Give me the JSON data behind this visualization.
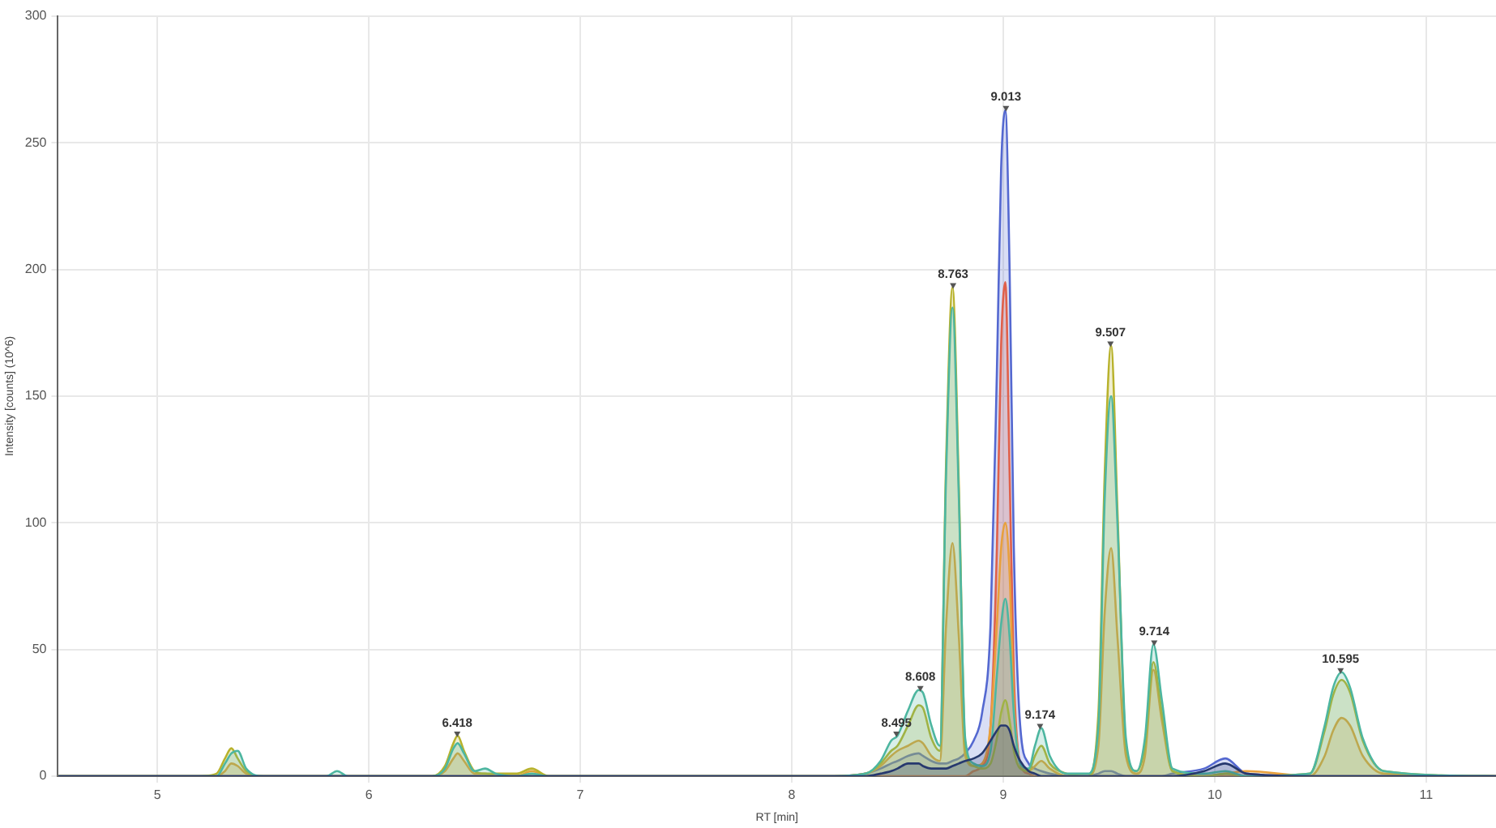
{
  "chart_data": {
    "type": "area",
    "xlabel": "RT [min]",
    "ylabel": "Intensity [counts] (10^6)",
    "x": [
      4.53,
      5.2,
      5.28,
      5.32,
      5.35,
      5.38,
      5.42,
      5.5,
      5.8,
      5.85,
      5.9,
      6.3,
      6.36,
      6.4,
      6.42,
      6.45,
      6.5,
      6.55,
      6.6,
      6.7,
      6.77,
      6.85,
      8.2,
      8.35,
      8.42,
      8.47,
      8.5,
      8.55,
      8.6,
      8.62,
      8.66,
      8.7,
      8.73,
      8.76,
      8.79,
      8.82,
      8.86,
      8.9,
      8.94,
      8.97,
      8.99,
      9.01,
      9.03,
      9.05,
      9.08,
      9.12,
      9.15,
      9.18,
      9.22,
      9.3,
      9.4,
      9.45,
      9.48,
      9.51,
      9.54,
      9.58,
      9.63,
      9.67,
      9.71,
      9.75,
      9.8,
      9.95,
      10.05,
      10.15,
      10.45,
      10.52,
      10.56,
      10.6,
      10.64,
      10.7,
      10.8,
      11.33
    ],
    "series": [
      {
        "color": "#26386e",
        "values": [
          0,
          0,
          0,
          0,
          0,
          0,
          0,
          0,
          0,
          0,
          0,
          0,
          0,
          0,
          0,
          0,
          0,
          0,
          0,
          0,
          0,
          0,
          0,
          0,
          1,
          2,
          3,
          5,
          5,
          4,
          3,
          3,
          3,
          4,
          5,
          6,
          7,
          9,
          14,
          18,
          20,
          20,
          18,
          12,
          6,
          2,
          1,
          0,
          0,
          0,
          0,
          0,
          0,
          0,
          0,
          0,
          0,
          0,
          0,
          0,
          0,
          2,
          5,
          1,
          0,
          0,
          0,
          0,
          0,
          0,
          0,
          0
        ]
      },
      {
        "color": "#4db6a0",
        "values": [
          0,
          0,
          0,
          5,
          9,
          10,
          3,
          0,
          0,
          2,
          0,
          0,
          3,
          11,
          13,
          9,
          2,
          3,
          1,
          0,
          1,
          0,
          0,
          1,
          6,
          14,
          16,
          26,
          34,
          33,
          20,
          12,
          120,
          185,
          110,
          15,
          5,
          4,
          10,
          40,
          60,
          70,
          55,
          25,
          5,
          3,
          12,
          19,
          8,
          1,
          1,
          20,
          110,
          150,
          100,
          15,
          2,
          15,
          52,
          30,
          3,
          1,
          2,
          0,
          1,
          20,
          35,
          41,
          35,
          15,
          2,
          0
        ]
      },
      {
        "color": "#b8b22c",
        "values": [
          0,
          0,
          1,
          7,
          11,
          7,
          2,
          0,
          0,
          0,
          0,
          0,
          4,
          13,
          16,
          10,
          2,
          1,
          1,
          1,
          3,
          0,
          0,
          1,
          5,
          10,
          12,
          20,
          28,
          27,
          15,
          10,
          125,
          193,
          115,
          12,
          4,
          3,
          5,
          15,
          25,
          30,
          22,
          10,
          3,
          2,
          8,
          12,
          5,
          1,
          0,
          25,
          120,
          170,
          105,
          12,
          2,
          12,
          45,
          25,
          2,
          0,
          1,
          0,
          1,
          18,
          32,
          38,
          33,
          14,
          2,
          0
        ]
      },
      {
        "color": "#e8a03c",
        "values": [
          0,
          0,
          0,
          2,
          5,
          4,
          1,
          0,
          0,
          0,
          0,
          0,
          2,
          7,
          9,
          6,
          1,
          1,
          0,
          0,
          2,
          0,
          0,
          1,
          4,
          8,
          10,
          12,
          14,
          13,
          8,
          6,
          60,
          92,
          55,
          8,
          4,
          5,
          20,
          60,
          90,
          100,
          80,
          30,
          5,
          2,
          4,
          6,
          3,
          0,
          0,
          12,
          65,
          90,
          55,
          8,
          1,
          8,
          42,
          22,
          2,
          0,
          1,
          2,
          0,
          8,
          18,
          23,
          20,
          8,
          1,
          0
        ]
      },
      {
        "color": "#e0604a",
        "values": [
          0,
          0,
          0,
          0,
          0,
          0,
          0,
          0,
          0,
          0,
          0,
          0,
          0,
          0,
          0,
          0,
          0,
          0,
          0,
          0,
          0,
          0,
          0,
          0,
          0,
          0,
          0,
          0,
          0,
          0,
          0,
          0,
          0,
          0,
          0,
          0,
          2,
          4,
          20,
          90,
          170,
          195,
          120,
          40,
          5,
          1,
          0,
          0,
          0,
          0,
          0,
          0,
          0,
          0,
          0,
          0,
          0,
          0,
          0,
          0,
          0,
          0,
          0,
          0,
          0,
          0,
          0,
          0,
          0,
          0,
          0,
          0
        ]
      },
      {
        "color": "#5468d0",
        "values": [
          0,
          0,
          0,
          0,
          0,
          0,
          0,
          0,
          0,
          0,
          0,
          0,
          0,
          0,
          0,
          0,
          0,
          0,
          0,
          0,
          0,
          0,
          0,
          1,
          3,
          5,
          6,
          8,
          9,
          8,
          6,
          5,
          5,
          6,
          7,
          9,
          14,
          25,
          60,
          160,
          240,
          263,
          200,
          90,
          20,
          5,
          3,
          2,
          1,
          0,
          0,
          1,
          2,
          2,
          1,
          0,
          0,
          0,
          0,
          0,
          1,
          3,
          7,
          1,
          0,
          0,
          0,
          0,
          0,
          0,
          0,
          0
        ]
      }
    ],
    "xlim": [
      4.53,
      11.33
    ],
    "xticks": [
      5,
      6,
      7,
      8,
      9,
      10,
      11
    ],
    "ylim": [
      0,
      300
    ],
    "yticks": [
      0,
      50,
      100,
      150,
      200,
      250,
      300
    ],
    "annotations": [
      {
        "text": "6.418",
        "x": 6.418,
        "y": 16
      },
      {
        "text": "8.495",
        "x": 8.495,
        "y": 16
      },
      {
        "text": "8.608",
        "x": 8.608,
        "y": 34
      },
      {
        "text": "8.763",
        "x": 8.763,
        "y": 193
      },
      {
        "text": "9.013",
        "x": 9.013,
        "y": 263
      },
      {
        "text": "9.174",
        "x": 9.174,
        "y": 19
      },
      {
        "text": "9.507",
        "x": 9.507,
        "y": 170
      },
      {
        "text": "9.714",
        "x": 9.714,
        "y": 52
      },
      {
        "text": "10.595",
        "x": 10.595,
        "y": 41
      }
    ],
    "grid": true,
    "legend": false,
    "marker": "none"
  }
}
